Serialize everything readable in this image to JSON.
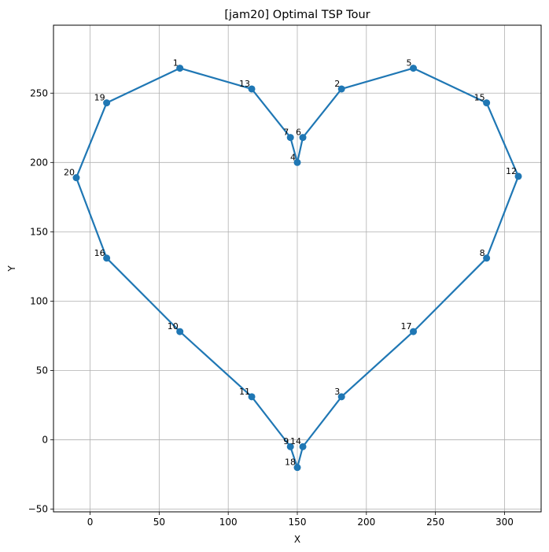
{
  "chart_data": {
    "type": "line",
    "title": "[jam20] Optimal TSP Tour",
    "xlabel": "X",
    "ylabel": "Y",
    "xlim": [
      -26.5,
      326.5
    ],
    "ylim": [
      -52,
      299
    ],
    "xticks": [
      0,
      50,
      100,
      150,
      200,
      250,
      300
    ],
    "yticks": [
      -50,
      0,
      50,
      100,
      150,
      200,
      250
    ],
    "grid": true,
    "color": "#1f77b4",
    "points": [
      {
        "label": "1",
        "x": 65,
        "y": 268
      },
      {
        "label": "2",
        "x": 182,
        "y": 253
      },
      {
        "label": "3",
        "x": 182,
        "y": 31
      },
      {
        "label": "4",
        "x": 150,
        "y": 200
      },
      {
        "label": "5",
        "x": 234,
        "y": 268
      },
      {
        "label": "6",
        "x": 154,
        "y": 218
      },
      {
        "label": "7",
        "x": 145,
        "y": 218
      },
      {
        "label": "8",
        "x": 287,
        "y": 131
      },
      {
        "label": "9",
        "x": 145,
        "y": -5
      },
      {
        "label": "10",
        "x": 65,
        "y": 78
      },
      {
        "label": "11",
        "x": 117,
        "y": 31
      },
      {
        "label": "12",
        "x": 310,
        "y": 190
      },
      {
        "label": "13",
        "x": 117,
        "y": 253
      },
      {
        "label": "14",
        "x": 154,
        "y": -5
      },
      {
        "label": "15",
        "x": 287,
        "y": 243
      },
      {
        "label": "16",
        "x": 12,
        "y": 131
      },
      {
        "label": "17",
        "x": 234,
        "y": 78
      },
      {
        "label": "18",
        "x": 150,
        "y": -20
      },
      {
        "label": "19",
        "x": 12,
        "y": 243
      },
      {
        "label": "20",
        "x": -10,
        "y": 189
      }
    ],
    "tour": [
      "1",
      "13",
      "7",
      "4",
      "6",
      "2",
      "5",
      "15",
      "12",
      "8",
      "17",
      "3",
      "14",
      "18",
      "9",
      "11",
      "10",
      "16",
      "20",
      "19",
      "1"
    ]
  }
}
